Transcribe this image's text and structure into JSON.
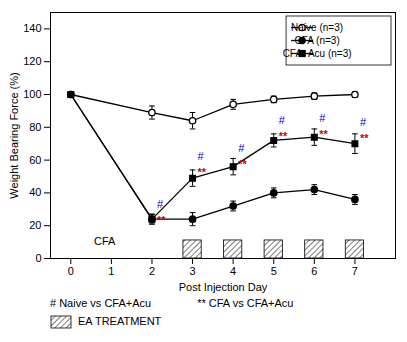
{
  "chart_data": {
    "type": "line",
    "xlabel": "Post Injection Day",
    "ylabel": "Weight Bearing Force (%)",
    "xlim": [
      -0.5,
      8.0
    ],
    "xticks": [
      0,
      1,
      2,
      3,
      4,
      5,
      6,
      7
    ],
    "ylim": [
      0,
      150
    ],
    "yticks": [
      0,
      20,
      40,
      60,
      80,
      100,
      120,
      140
    ],
    "x": [
      0,
      2,
      3,
      4,
      5,
      6,
      7
    ],
    "series": [
      {
        "name": "Naive (n=3)",
        "color": "#000000",
        "marker": "open_circle",
        "line_style": "solid",
        "values": [
          100,
          89,
          84,
          94,
          97,
          99,
          100
        ],
        "yerr": [
          1.5,
          4,
          5,
          3,
          2,
          2,
          1.5
        ]
      },
      {
        "name": "CFA (n=3)",
        "color": "#000000",
        "marker": "circle",
        "line_style": "solid",
        "values": [
          100,
          24,
          24,
          32,
          40,
          42,
          36
        ],
        "yerr": [
          1.5,
          3,
          4,
          3,
          3,
          3,
          3
        ]
      },
      {
        "name": "CFA+Acu (n=3)",
        "color": "#000000",
        "marker": "square",
        "line_style": "solid",
        "values": [
          100,
          24,
          49,
          56,
          72,
          74,
          70
        ],
        "yerr": [
          1.5,
          3,
          5,
          5,
          4,
          5,
          6
        ]
      }
    ],
    "annotations": [
      {
        "text": "#",
        "x": 2,
        "y": 31,
        "color": "#0000cc"
      },
      {
        "text": "**",
        "x": 2,
        "y": 26,
        "color": "#cc0000"
      },
      {
        "text": "#",
        "x": 3,
        "y": 60,
        "color": "#0000cc"
      },
      {
        "text": "**",
        "x": 3,
        "y": 55,
        "color": "#cc0000"
      },
      {
        "text": "#",
        "x": 4,
        "y": 65,
        "color": "#0000cc"
      },
      {
        "text": "**",
        "x": 4,
        "y": 60,
        "color": "#cc0000"
      },
      {
        "text": "#",
        "x": 5,
        "y": 82,
        "color": "#0000cc"
      },
      {
        "text": "**",
        "x": 5,
        "y": 77,
        "color": "#cc0000"
      },
      {
        "text": "#",
        "x": 6,
        "y": 83,
        "color": "#0000cc"
      },
      {
        "text": "**",
        "x": 6,
        "y": 78,
        "color": "#cc0000"
      },
      {
        "text": "#",
        "x": 7,
        "y": 81,
        "color": "#0000cc"
      },
      {
        "text": "**",
        "x": 7,
        "y": 76,
        "color": "#cc0000"
      },
      {
        "text": "CFA",
        "x": 0.45,
        "y": 8,
        "color": "#000000"
      }
    ],
    "treatment_boxes": {
      "x": [
        3,
        4,
        5,
        6,
        7
      ],
      "height": 11,
      "label": "EA TREATMENT"
    },
    "footnotes": [
      "# Naive vs CFA+Acu",
      "** CFA vs CFA+Acu"
    ],
    "legend": "upper right",
    "grid": false
  }
}
